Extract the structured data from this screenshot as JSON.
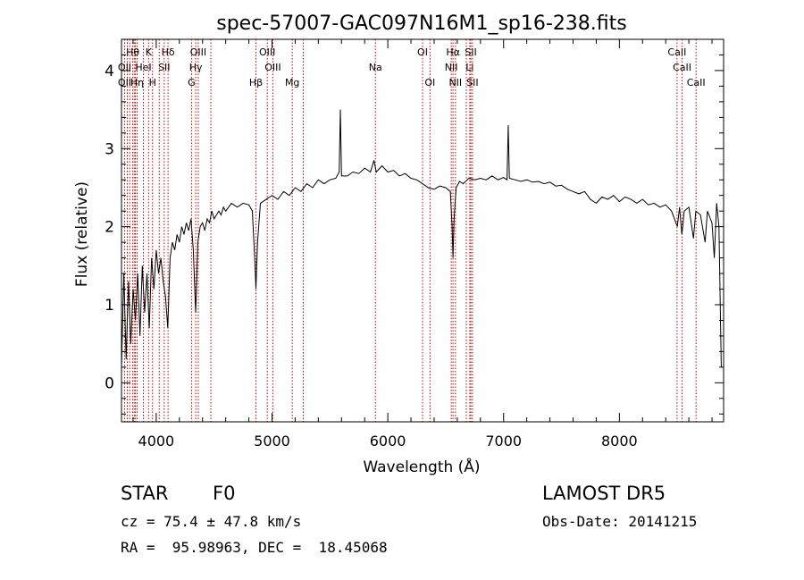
{
  "chart_data": {
    "type": "line",
    "title": "spec-57007-GAC097N16M1_sp16-238.fits",
    "xlabel": "Wavelength (Å)",
    "ylabel": "Flux (relative)",
    "xlim": [
      3700,
      8900
    ],
    "ylim": [
      -0.5,
      4.4
    ],
    "xticks": [
      4000,
      5000,
      6000,
      7000,
      8000
    ],
    "yticks": [
      0,
      1,
      2,
      3,
      4
    ],
    "grid": false,
    "line_color": "#000000",
    "marker_color": "#cc0000",
    "spectrum_points": [
      [
        3700,
        0.2
      ],
      [
        3720,
        1.4
      ],
      [
        3740,
        0.3
      ],
      [
        3760,
        1.3
      ],
      [
        3780,
        0.5
      ],
      [
        3800,
        1.2
      ],
      [
        3820,
        0.8
      ],
      [
        3840,
        1.4
      ],
      [
        3860,
        0.6
      ],
      [
        3880,
        1.5
      ],
      [
        3900,
        0.9
      ],
      [
        3920,
        1.4
      ],
      [
        3940,
        0.7
      ],
      [
        3960,
        1.6
      ],
      [
        3980,
        1.2
      ],
      [
        4000,
        1.7
      ],
      [
        4020,
        1.4
      ],
      [
        4040,
        1.6
      ],
      [
        4060,
        1.3
      ],
      [
        4080,
        1.1
      ],
      [
        4100,
        0.7
      ],
      [
        4120,
        1.6
      ],
      [
        4140,
        1.8
      ],
      [
        4160,
        1.7
      ],
      [
        4180,
        1.9
      ],
      [
        4200,
        1.8
      ],
      [
        4220,
        2.0
      ],
      [
        4240,
        1.9
      ],
      [
        4260,
        2.05
      ],
      [
        4280,
        1.95
      ],
      [
        4300,
        2.1
      ],
      [
        4320,
        1.7
      ],
      [
        4340,
        0.9
      ],
      [
        4360,
        1.8
      ],
      [
        4380,
        2.0
      ],
      [
        4400,
        2.05
      ],
      [
        4420,
        1.95
      ],
      [
        4440,
        2.1
      ],
      [
        4460,
        2.05
      ],
      [
        4480,
        2.2
      ],
      [
        4500,
        2.1
      ],
      [
        4520,
        2.15
      ],
      [
        4540,
        2.2
      ],
      [
        4560,
        2.15
      ],
      [
        4580,
        2.25
      ],
      [
        4600,
        2.2
      ],
      [
        4650,
        2.3
      ],
      [
        4700,
        2.25
      ],
      [
        4750,
        2.3
      ],
      [
        4800,
        2.28
      ],
      [
        4830,
        2.2
      ],
      [
        4850,
        1.6
      ],
      [
        4861,
        1.2
      ],
      [
        4875,
        1.8
      ],
      [
        4900,
        2.3
      ],
      [
        4950,
        2.35
      ],
      [
        5000,
        2.4
      ],
      [
        5050,
        2.35
      ],
      [
        5100,
        2.45
      ],
      [
        5150,
        2.4
      ],
      [
        5200,
        2.5
      ],
      [
        5250,
        2.45
      ],
      [
        5300,
        2.55
      ],
      [
        5350,
        2.5
      ],
      [
        5400,
        2.6
      ],
      [
        5450,
        2.55
      ],
      [
        5500,
        2.6
      ],
      [
        5550,
        2.62
      ],
      [
        5580,
        2.7
      ],
      [
        5590,
        3.5
      ],
      [
        5600,
        2.65
      ],
      [
        5650,
        2.65
      ],
      [
        5700,
        2.7
      ],
      [
        5750,
        2.68
      ],
      [
        5800,
        2.75
      ],
      [
        5850,
        2.7
      ],
      [
        5880,
        2.85
      ],
      [
        5900,
        2.7
      ],
      [
        5950,
        2.78
      ],
      [
        6000,
        2.7
      ],
      [
        6050,
        2.72
      ],
      [
        6100,
        2.65
      ],
      [
        6150,
        2.68
      ],
      [
        6200,
        2.62
      ],
      [
        6250,
        2.6
      ],
      [
        6300,
        2.55
      ],
      [
        6350,
        2.5
      ],
      [
        6400,
        2.48
      ],
      [
        6450,
        2.52
      ],
      [
        6500,
        2.5
      ],
      [
        6540,
        2.45
      ],
      [
        6555,
        2.0
      ],
      [
        6563,
        1.6
      ],
      [
        6572,
        2.1
      ],
      [
        6590,
        2.5
      ],
      [
        6620,
        2.58
      ],
      [
        6650,
        2.55
      ],
      [
        6700,
        2.62
      ],
      [
        6750,
        2.6
      ],
      [
        6800,
        2.62
      ],
      [
        6850,
        2.6
      ],
      [
        6900,
        2.65
      ],
      [
        6950,
        2.6
      ],
      [
        7000,
        2.63
      ],
      [
        7030,
        2.6
      ],
      [
        7040,
        3.3
      ],
      [
        7050,
        2.62
      ],
      [
        7100,
        2.6
      ],
      [
        7150,
        2.58
      ],
      [
        7200,
        2.6
      ],
      [
        7250,
        2.57
      ],
      [
        7300,
        2.58
      ],
      [
        7350,
        2.55
      ],
      [
        7400,
        2.57
      ],
      [
        7450,
        2.52
      ],
      [
        7500,
        2.53
      ],
      [
        7550,
        2.48
      ],
      [
        7600,
        2.45
      ],
      [
        7650,
        2.42
      ],
      [
        7700,
        2.45
      ],
      [
        7750,
        2.35
      ],
      [
        7800,
        2.3
      ],
      [
        7850,
        2.38
      ],
      [
        7900,
        2.35
      ],
      [
        7950,
        2.4
      ],
      [
        8000,
        2.32
      ],
      [
        8050,
        2.38
      ],
      [
        8100,
        2.35
      ],
      [
        8150,
        2.3
      ],
      [
        8200,
        2.35
      ],
      [
        8250,
        2.28
      ],
      [
        8300,
        2.3
      ],
      [
        8350,
        2.25
      ],
      [
        8400,
        2.28
      ],
      [
        8450,
        2.2
      ],
      [
        8500,
        2.0
      ],
      [
        8520,
        2.25
      ],
      [
        8540,
        1.9
      ],
      [
        8560,
        2.2
      ],
      [
        8600,
        2.25
      ],
      [
        8640,
        1.85
      ],
      [
        8660,
        2.2
      ],
      [
        8700,
        2.15
      ],
      [
        8740,
        1.8
      ],
      [
        8760,
        2.2
      ],
      [
        8800,
        2.05
      ],
      [
        8820,
        1.6
      ],
      [
        8840,
        2.3
      ],
      [
        8860,
        2.0
      ],
      [
        8880,
        0.2
      ]
    ],
    "lines": [
      {
        "label": "Hθ",
        "x": 3797,
        "row": 0
      },
      {
        "label": "OII",
        "x": 3727,
        "row": 1
      },
      {
        "label": "OII",
        "x": 3727,
        "row": 2
      },
      {
        "label": "K",
        "x": 3934,
        "row": 0
      },
      {
        "label": "Hδ",
        "x": 4102,
        "row": 0
      },
      {
        "label": "OIII",
        "x": 4363,
        "row": 0
      },
      {
        "label": "OIII",
        "x": 4959,
        "row": 0
      },
      {
        "label": "OI",
        "x": 6300,
        "row": 0
      },
      {
        "label": "Hα",
        "x": 6563,
        "row": 0
      },
      {
        "label": "SII",
        "x": 6717,
        "row": 0
      },
      {
        "label": "CaII",
        "x": 8498,
        "row": 0
      },
      {
        "label": "HeI",
        "x": 3889,
        "row": 1
      },
      {
        "label": "SII",
        "x": 4069,
        "row": 1
      },
      {
        "label": "Hγ",
        "x": 4341,
        "row": 1
      },
      {
        "label": "OIII",
        "x": 5007,
        "row": 1
      },
      {
        "label": "Na",
        "x": 5893,
        "row": 1
      },
      {
        "label": "NII",
        "x": 6548,
        "row": 1
      },
      {
        "label": "Li",
        "x": 6708,
        "row": 1
      },
      {
        "label": "CaII",
        "x": 8542,
        "row": 1
      },
      {
        "label": "Hη",
        "x": 3835,
        "row": 2
      },
      {
        "label": "H",
        "x": 3968,
        "row": 2
      },
      {
        "label": "G",
        "x": 4305,
        "row": 2
      },
      {
        "label": "Hβ",
        "x": 4861,
        "row": 2
      },
      {
        "label": "Mg",
        "x": 5175,
        "row": 2
      },
      {
        "label": "OI",
        "x": 6364,
        "row": 2
      },
      {
        "label": "NII",
        "x": 6584,
        "row": 2
      },
      {
        "label": "SII",
        "x": 6731,
        "row": 2
      },
      {
        "label": "CaII",
        "x": 8662,
        "row": 2
      }
    ],
    "extra_markers": [
      3750,
      3771,
      3810,
      3820,
      4026,
      4472,
      5270,
      6678
    ]
  },
  "footer": {
    "obj_class": "STAR",
    "subclass": "F0",
    "release": "LAMOST DR5",
    "cz": "cz = 75.4 ± 47.8 km/s",
    "obs_date": "Obs-Date: 20141215",
    "coords": "RA =  95.98963, DEC =  18.45068"
  }
}
